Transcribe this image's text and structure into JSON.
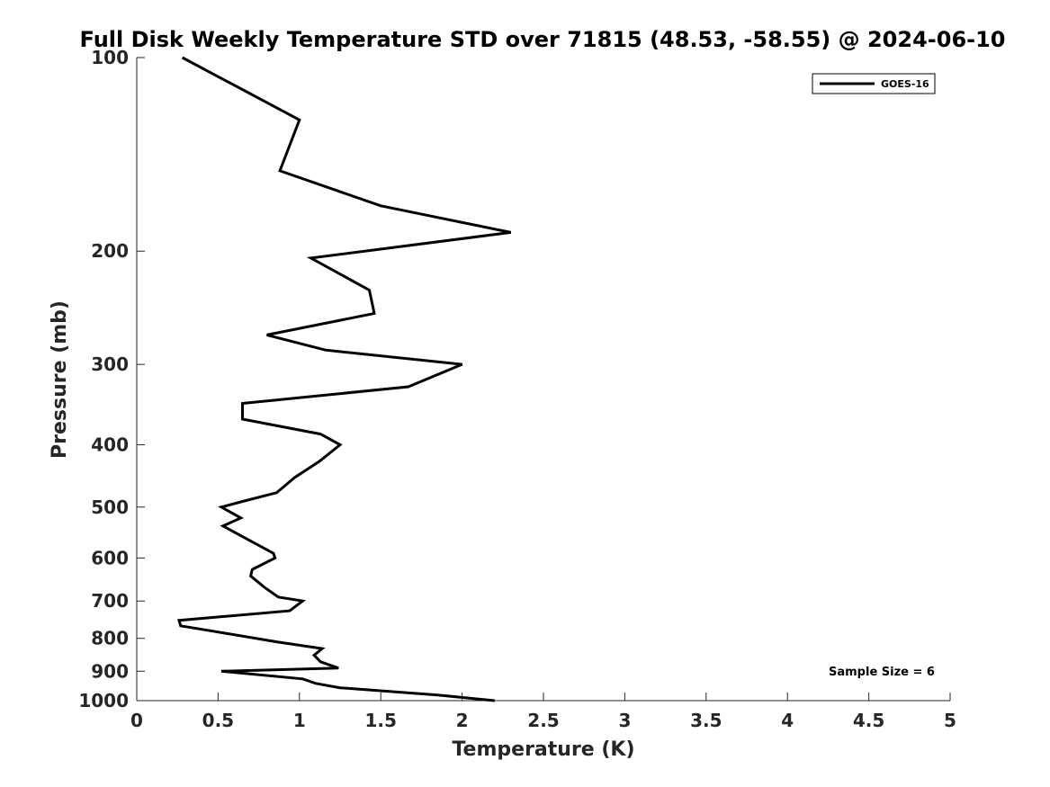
{
  "chart_data": {
    "type": "line",
    "title": "Full Disk Weekly Temperature STD over 71815 (48.53, -58.55) @ 2024-06-10",
    "xlabel": "Temperature (K)",
    "ylabel": "Pressure (mb)",
    "xlim": [
      0,
      5
    ],
    "ylim": [
      100,
      1000
    ],
    "y_scale": "log",
    "y_reversed": true,
    "grid": false,
    "legend_position": "top-right",
    "x_ticks": [
      "0",
      "0.5",
      "1",
      "1.5",
      "2",
      "2.5",
      "3",
      "3.5",
      "4",
      "4.5",
      "5"
    ],
    "y_ticks": [
      "100",
      "200",
      "300",
      "400",
      "500",
      "600",
      "700",
      "800",
      "900",
      "1000"
    ],
    "series": [
      {
        "name": "GOES-16",
        "color": "#000000",
        "points": [
          [
            0.28,
            100
          ],
          [
            1.0,
            125
          ],
          [
            0.88,
            150
          ],
          [
            1.5,
            170
          ],
          [
            2.3,
            187
          ],
          [
            1.07,
            205
          ],
          [
            1.43,
            230
          ],
          [
            1.46,
            250
          ],
          [
            0.8,
            270
          ],
          [
            1.16,
            285
          ],
          [
            2.0,
            300
          ],
          [
            1.67,
            325
          ],
          [
            0.65,
            345
          ],
          [
            0.65,
            365
          ],
          [
            1.13,
            385
          ],
          [
            1.25,
            400
          ],
          [
            1.12,
            425
          ],
          [
            0.97,
            450
          ],
          [
            0.86,
            475
          ],
          [
            0.65,
            490
          ],
          [
            0.52,
            500
          ],
          [
            0.64,
            520
          ],
          [
            0.53,
            535
          ],
          [
            0.84,
            590
          ],
          [
            0.85,
            600
          ],
          [
            0.71,
            625
          ],
          [
            0.7,
            640
          ],
          [
            0.78,
            665
          ],
          [
            0.87,
            690
          ],
          [
            1.02,
            700
          ],
          [
            0.94,
            725
          ],
          [
            0.26,
            750
          ],
          [
            0.27,
            765
          ],
          [
            0.47,
            780
          ],
          [
            0.86,
            810
          ],
          [
            1.14,
            830
          ],
          [
            1.09,
            850
          ],
          [
            1.13,
            870
          ],
          [
            1.24,
            890
          ],
          [
            0.52,
            900
          ],
          [
            1.02,
            925
          ],
          [
            1.1,
            940
          ],
          [
            1.25,
            955
          ],
          [
            1.85,
            980
          ],
          [
            2.2,
            1000
          ]
        ]
      }
    ],
    "annotation": "Sample Size = 6"
  }
}
